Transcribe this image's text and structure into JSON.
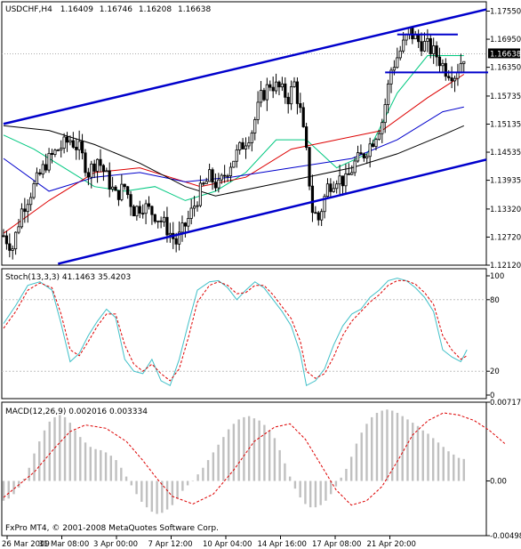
{
  "chart_data": [
    {
      "type": "candlestick",
      "title": "USDCHF,H4",
      "ohlc_readout": [
        "1.16409",
        "1.16746",
        "1.16208",
        "1.16638"
      ],
      "current_price": "1.16638",
      "ylim": [
        1.1212,
        1.1775
      ],
      "yticks": [
        "1.17550",
        "1.16950",
        "1.16350",
        "1.15735",
        "1.15135",
        "1.14535",
        "1.13935",
        "1.13320",
        "1.12720",
        "1.12120"
      ],
      "xticks": [
        "26 Mar 2009",
        "31 Mar 08:00",
        "3 Apr 00:00",
        "7 Apr 12:00",
        "10 Apr 04:00",
        "14 Apr 16:00",
        "17 Apr 08:00",
        "21 Apr 20:00"
      ],
      "close_path": [
        [
          0,
          1.1275
        ],
        [
          3,
          1.125
        ],
        [
          6,
          1.133
        ],
        [
          10,
          1.138
        ],
        [
          14,
          1.143
        ],
        [
          18,
          1.146
        ],
        [
          22,
          1.148
        ],
        [
          25,
          1.146
        ],
        [
          28,
          1.141
        ],
        [
          31,
          1.144
        ],
        [
          34,
          1.14
        ],
        [
          37,
          1.136
        ],
        [
          40,
          1.138
        ],
        [
          43,
          1.133
        ],
        [
          46,
          1.134
        ],
        [
          50,
          1.132
        ],
        [
          53,
          1.13
        ],
        [
          57,
          1.126
        ],
        [
          61,
          1.131
        ],
        [
          65,
          1.137
        ],
        [
          68,
          1.14
        ],
        [
          71,
          1.138
        ],
        [
          75,
          1.143
        ],
        [
          78,
          1.146
        ],
        [
          82,
          1.15
        ],
        [
          85,
          1.157
        ],
        [
          88,
          1.16
        ],
        [
          91,
          1.159
        ],
        [
          94,
          1.157
        ],
        [
          96,
          1.16
        ],
        [
          98,
          1.154
        ],
        [
          100,
          1.145
        ],
        [
          102,
          1.133
        ],
        [
          104,
          1.131
        ],
        [
          107,
          1.138
        ],
        [
          110,
          1.14
        ],
        [
          113,
          1.139
        ],
        [
          116,
          1.143
        ],
        [
          119,
          1.145
        ],
        [
          122,
          1.148
        ],
        [
          125,
          1.152
        ],
        [
          128,
          1.163
        ],
        [
          131,
          1.167
        ],
        [
          134,
          1.171
        ],
        [
          137,
          1.169
        ],
        [
          140,
          1.168
        ],
        [
          143,
          1.166
        ],
        [
          146,
          1.163
        ],
        [
          149,
          1.162
        ],
        [
          152,
          1.166
        ]
      ],
      "moving_averages": [
        {
          "color": "#00c880",
          "points": [
            [
              0,
              1.149
            ],
            [
              10,
              1.146
            ],
            [
              20,
              1.142
            ],
            [
              30,
              1.138
            ],
            [
              40,
              1.137
            ],
            [
              50,
              1.138
            ],
            [
              60,
              1.135
            ],
            [
              70,
              1.137
            ],
            [
              80,
              1.141
            ],
            [
              90,
              1.148
            ],
            [
              100,
              1.148
            ],
            [
              110,
              1.142
            ],
            [
              120,
              1.145
            ],
            [
              130,
              1.158
            ],
            [
              140,
              1.166
            ],
            [
              152,
              1.166
            ]
          ]
        },
        {
          "color": "#dd0000",
          "points": [
            [
              0,
              1.128
            ],
            [
              15,
              1.135
            ],
            [
              30,
              1.141
            ],
            [
              45,
              1.142
            ],
            [
              55,
              1.14
            ],
            [
              65,
              1.138
            ],
            [
              80,
              1.14
            ],
            [
              95,
              1.146
            ],
            [
              110,
              1.148
            ],
            [
              125,
              1.15
            ],
            [
              140,
              1.157
            ],
            [
              152,
              1.162
            ]
          ]
        },
        {
          "color": "#0000cc",
          "points": [
            [
              0,
              1.144
            ],
            [
              15,
              1.137
            ],
            [
              30,
              1.14
            ],
            [
              45,
              1.141
            ],
            [
              60,
              1.139
            ],
            [
              75,
              1.14
            ],
            [
              95,
              1.142
            ],
            [
              115,
              1.144
            ],
            [
              130,
              1.148
            ],
            [
              145,
              1.154
            ],
            [
              152,
              1.155
            ]
          ]
        },
        {
          "color": "#000000",
          "points": [
            [
              0,
              1.151
            ],
            [
              15,
              1.15
            ],
            [
              30,
              1.147
            ],
            [
              45,
              1.143
            ],
            [
              60,
              1.138
            ],
            [
              70,
              1.136
            ],
            [
              85,
              1.138
            ],
            [
              100,
              1.14
            ],
            [
              115,
              1.142
            ],
            [
              130,
              1.145
            ],
            [
              145,
              1.149
            ],
            [
              152,
              1.151
            ]
          ]
        }
      ],
      "channel_lines": [
        {
          "color": "#0000cc",
          "from": [
            0,
            1.1514
          ],
          "to": [
            170,
            1.1775
          ]
        },
        {
          "color": "#0000cc",
          "from": [
            18,
            1.1215
          ],
          "to": [
            180,
            1.147
          ]
        }
      ],
      "horizontal_levels": [
        {
          "color": "#0000cc",
          "x": [
            130,
            150
          ],
          "y": 1.1705
        },
        {
          "color": "#0000cc",
          "x": [
            126,
            160
          ],
          "y": 1.1624
        }
      ]
    },
    {
      "type": "line",
      "title": "Stoch(13,3,3) 41.1463 35.4203",
      "ylim": [
        0,
        100
      ],
      "yticks": [
        "100",
        "80",
        "20",
        "0"
      ],
      "levels": [
        80,
        20
      ],
      "series": [
        {
          "color": "#40c0c8",
          "style": "solid",
          "values": [
            [
              0,
              60
            ],
            [
              4,
              75
            ],
            [
              8,
              92
            ],
            [
              12,
              95
            ],
            [
              16,
              88
            ],
            [
              19,
              60
            ],
            [
              22,
              28
            ],
            [
              25,
              35
            ],
            [
              28,
              50
            ],
            [
              31,
              62
            ],
            [
              34,
              72
            ],
            [
              37,
              65
            ],
            [
              40,
              30
            ],
            [
              43,
              20
            ],
            [
              46,
              18
            ],
            [
              49,
              30
            ],
            [
              52,
              12
            ],
            [
              55,
              8
            ],
            [
              58,
              30
            ],
            [
              61,
              60
            ],
            [
              64,
              88
            ],
            [
              68,
              95
            ],
            [
              71,
              96
            ],
            [
              74,
              90
            ],
            [
              77,
              80
            ],
            [
              80,
              88
            ],
            [
              83,
              95
            ],
            [
              86,
              90
            ],
            [
              89,
              80
            ],
            [
              92,
              70
            ],
            [
              95,
              58
            ],
            [
              98,
              35
            ],
            [
              100,
              8
            ],
            [
              103,
              12
            ],
            [
              106,
              22
            ],
            [
              109,
              42
            ],
            [
              112,
              58
            ],
            [
              115,
              68
            ],
            [
              118,
              72
            ],
            [
              121,
              82
            ],
            [
              124,
              88
            ],
            [
              127,
              96
            ],
            [
              130,
              98
            ],
            [
              133,
              96
            ],
            [
              136,
              90
            ],
            [
              139,
              82
            ],
            [
              142,
              70
            ],
            [
              145,
              38
            ],
            [
              148,
              32
            ],
            [
              151,
              28
            ],
            [
              153,
              38
            ]
          ]
        },
        {
          "color": "#dd0000",
          "style": "dash",
          "values": [
            [
              0,
              56
            ],
            [
              4,
              70
            ],
            [
              8,
              88
            ],
            [
              12,
              94
            ],
            [
              16,
              90
            ],
            [
              19,
              68
            ],
            [
              22,
              38
            ],
            [
              25,
              33
            ],
            [
              28,
              45
            ],
            [
              31,
              58
            ],
            [
              34,
              68
            ],
            [
              37,
              68
            ],
            [
              40,
              42
            ],
            [
              43,
              26
            ],
            [
              46,
              20
            ],
            [
              49,
              26
            ],
            [
              52,
              18
            ],
            [
              55,
              12
            ],
            [
              58,
              22
            ],
            [
              61,
              48
            ],
            [
              64,
              78
            ],
            [
              68,
              92
            ],
            [
              71,
              95
            ],
            [
              74,
              92
            ],
            [
              77,
              85
            ],
            [
              80,
              86
            ],
            [
              83,
              92
            ],
            [
              86,
              92
            ],
            [
              89,
              84
            ],
            [
              92,
              74
            ],
            [
              95,
              64
            ],
            [
              98,
              45
            ],
            [
              100,
              20
            ],
            [
              103,
              14
            ],
            [
              106,
              18
            ],
            [
              109,
              32
            ],
            [
              112,
              50
            ],
            [
              115,
              62
            ],
            [
              118,
              70
            ],
            [
              121,
              78
            ],
            [
              124,
              84
            ],
            [
              127,
              92
            ],
            [
              130,
              96
            ],
            [
              133,
              96
            ],
            [
              136,
              93
            ],
            [
              139,
              86
            ],
            [
              142,
              76
            ],
            [
              145,
              50
            ],
            [
              148,
              38
            ],
            [
              151,
              30
            ],
            [
              153,
              33
            ]
          ]
        }
      ]
    },
    {
      "type": "bar",
      "title": "MACD(12,26,9) 0.002016 0.003334",
      "ylim": [
        -0.00498,
        0.00717
      ],
      "yticks": [
        "0.00717",
        "0.00",
        "-0.00498"
      ],
      "histogram": [
        -0.0018,
        -0.0016,
        -0.0012,
        -0.0006,
        0.0002,
        0.0012,
        0.0025,
        0.0036,
        0.0046,
        0.0054,
        0.0058,
        0.006,
        0.0058,
        0.0053,
        0.0046,
        0.004,
        0.0035,
        0.0031,
        0.0029,
        0.0028,
        0.0026,
        0.0023,
        0.0019,
        0.0012,
        0.0004,
        -0.0004,
        -0.0012,
        -0.0019,
        -0.0024,
        -0.0028,
        -0.003,
        -0.0029,
        -0.0026,
        -0.0022,
        -0.0016,
        -0.0009,
        -0.0004,
        0.0,
        0.0006,
        0.0012,
        0.0019,
        0.0026,
        0.0033,
        0.004,
        0.0047,
        0.0052,
        0.0056,
        0.0058,
        0.0059,
        0.0057,
        0.0055,
        0.0051,
        0.0046,
        0.0039,
        0.0028,
        0.0016,
        0.0004,
        -0.0007,
        -0.0015,
        -0.0021,
        -0.0024,
        -0.0024,
        -0.0022,
        -0.0018,
        -0.0012,
        -0.0005,
        0.0003,
        0.0011,
        0.0022,
        0.0034,
        0.0044,
        0.0052,
        0.0058,
        0.0062,
        0.0064,
        0.0065,
        0.0064,
        0.0062,
        0.0059,
        0.0056,
        0.0053,
        0.005,
        0.0046,
        0.0043,
        0.0039,
        0.0035,
        0.0031,
        0.0027,
        0.0024,
        0.0021,
        0.002
      ],
      "signal": [
        [
          0,
          -0.0015
        ],
        [
          6,
          0.0008
        ],
        [
          10,
          0.003
        ],
        [
          13,
          0.0045
        ],
        [
          16,
          0.0051
        ],
        [
          20,
          0.0048
        ],
        [
          24,
          0.0036
        ],
        [
          27,
          0.002
        ],
        [
          30,
          0.0002
        ],
        [
          33,
          -0.0014
        ],
        [
          37,
          -0.0021
        ],
        [
          41,
          -0.0012
        ],
        [
          45,
          0.001
        ],
        [
          49,
          0.0036
        ],
        [
          53,
          0.0049
        ],
        [
          56,
          0.0052
        ],
        [
          59,
          0.0038
        ],
        [
          62,
          0.0015
        ],
        [
          65,
          -0.0008
        ],
        [
          68,
          -0.0022
        ],
        [
          71,
          -0.0018
        ],
        [
          74,
          -0.0005
        ],
        [
          77,
          0.0018
        ],
        [
          80,
          0.0042
        ],
        [
          83,
          0.0055
        ],
        [
          86,
          0.0062
        ],
        [
          89,
          0.006
        ],
        [
          92,
          0.0055
        ],
        [
          95,
          0.0046
        ],
        [
          98,
          0.0034
        ]
      ],
      "zero_label": "0.00"
    }
  ],
  "copyright": "FxPro MT4, © 2001-2008 MetaQuotes Software Corp."
}
